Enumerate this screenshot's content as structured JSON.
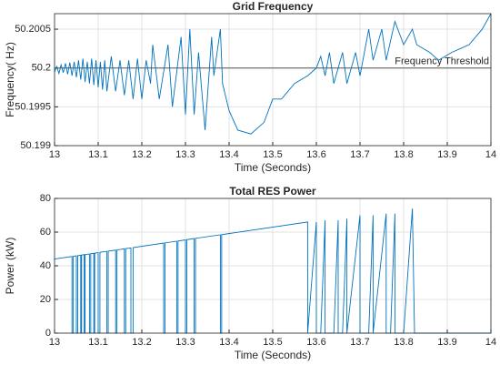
{
  "chart_data": [
    {
      "type": "line",
      "title": "Grid Frequency",
      "xlabel": "Time (Seconds)",
      "ylabel": "Frequency( Hz)",
      "xlim": [
        13,
        14
      ],
      "xticks": [
        13,
        13.1,
        13.2,
        13.3,
        13.4,
        13.5,
        13.6,
        13.7,
        13.8,
        13.9,
        14
      ],
      "ylim": [
        50.199,
        50.2007
      ],
      "yticks": [
        50.199,
        50.1995,
        50.2,
        50.2005
      ],
      "grid": true,
      "threshold": {
        "value": 50.2,
        "label": "Frequency Threshold",
        "color": "#555555"
      },
      "x": [
        13.0,
        13.005,
        13.01,
        13.015,
        13.02,
        13.025,
        13.03,
        13.035,
        13.04,
        13.045,
        13.05,
        13.055,
        13.06,
        13.065,
        13.07,
        13.075,
        13.08,
        13.085,
        13.09,
        13.095,
        13.1,
        13.105,
        13.11,
        13.115,
        13.12,
        13.13,
        13.14,
        13.15,
        13.16,
        13.17,
        13.18,
        13.19,
        13.2,
        13.21,
        13.22,
        13.225,
        13.24,
        13.26,
        13.27,
        13.29,
        13.3,
        13.31,
        13.32,
        13.33,
        13.345,
        13.36,
        13.365,
        13.38,
        13.385,
        13.4,
        13.42,
        13.45,
        13.48,
        13.5,
        13.52,
        13.55,
        13.58,
        13.6,
        13.61,
        13.62,
        13.63,
        13.64,
        13.66,
        13.67,
        13.69,
        13.7,
        13.72,
        13.73,
        13.75,
        13.76,
        13.78,
        13.8,
        13.82,
        13.83,
        13.86,
        13.88,
        13.91,
        13.95,
        13.98,
        14.0
      ],
      "series": [
        {
          "color": "#0072bd",
          "values": [
            50.19995,
            50.20002,
            50.19993,
            50.20004,
            50.19994,
            50.20006,
            50.19992,
            50.20007,
            50.1999,
            50.20008,
            50.19988,
            50.2001,
            50.19985,
            50.20012,
            50.19982,
            50.20008,
            50.1998,
            50.20012,
            50.19978,
            50.2001,
            50.19975,
            50.20008,
            50.19972,
            50.2001,
            50.1997,
            50.20015,
            50.1997,
            50.2001,
            50.19965,
            50.2001,
            50.1996,
            50.20012,
            50.1996,
            50.2001,
            50.1998,
            50.2003,
            50.1996,
            50.2003,
            50.1995,
            50.2004,
            50.1994,
            50.2005,
            50.1994,
            50.2002,
            50.1992,
            50.2004,
            50.1999,
            50.2005,
            50.1998,
            50.19945,
            50.1992,
            50.19915,
            50.1993,
            50.1996,
            50.1996,
            50.1998,
            50.1999,
            50.2,
            50.20015,
            50.1999,
            50.2002,
            50.1998,
            50.2002,
            50.1998,
            50.2002,
            50.1999,
            50.2005,
            50.2001,
            50.2005,
            50.2001,
            50.2006,
            50.2003,
            50.2005,
            50.2003,
            50.2002,
            50.2001,
            50.2002,
            50.2003,
            50.2005,
            50.2007
          ]
        }
      ]
    },
    {
      "type": "line",
      "title": "Total RES Power",
      "xlabel": "Time (Seconds)",
      "ylabel": "Power (kW)",
      "xlim": [
        13,
        14
      ],
      "xticks": [
        13,
        13.1,
        13.2,
        13.3,
        13.4,
        13.5,
        13.6,
        13.7,
        13.8,
        13.9,
        14
      ],
      "ylim": [
        0,
        80
      ],
      "yticks": [
        0,
        20,
        40,
        60,
        80
      ],
      "grid": true,
      "x": [
        13.0,
        13.04,
        13.04,
        13.043,
        13.043,
        13.05,
        13.05,
        13.053,
        13.053,
        13.06,
        13.06,
        13.062,
        13.062,
        13.068,
        13.068,
        13.07,
        13.07,
        13.08,
        13.08,
        13.083,
        13.083,
        13.09,
        13.09,
        13.092,
        13.092,
        13.1,
        13.1,
        13.104,
        13.104,
        13.12,
        13.12,
        13.123,
        13.123,
        13.14,
        13.14,
        13.143,
        13.143,
        13.16,
        13.16,
        13.163,
        13.163,
        13.175,
        13.175,
        13.18,
        13.18,
        13.25,
        13.25,
        13.253,
        13.253,
        13.28,
        13.28,
        13.283,
        13.283,
        13.3,
        13.3,
        13.303,
        13.303,
        13.32,
        13.32,
        13.323,
        13.323,
        13.38,
        13.38,
        13.383,
        13.383,
        13.58,
        13.58,
        13.6,
        13.6,
        13.61,
        13.62,
        13.62,
        13.64,
        13.65,
        13.65,
        13.66,
        13.67,
        13.67,
        13.7,
        13.7,
        13.72,
        13.73,
        13.73,
        13.76,
        13.76,
        13.77,
        13.78,
        13.78,
        13.8,
        13.82,
        13.825,
        14.0
      ],
      "series": [
        {
          "color": "#0072bd",
          "values": [
            44,
            45.5,
            0,
            0,
            45.6,
            45.9,
            0,
            0,
            46,
            46.3,
            0,
            0,
            46.4,
            46.6,
            0,
            0,
            46.7,
            47,
            0,
            0,
            47.2,
            47.4,
            0,
            0,
            47.5,
            47.8,
            0,
            0,
            48,
            48.6,
            0,
            0,
            48.7,
            49.3,
            0,
            0,
            49.4,
            50.1,
            0,
            0,
            50.2,
            50.6,
            0,
            0,
            50.8,
            53.5,
            0,
            0,
            53.6,
            54.6,
            0,
            0,
            54.7,
            55.4,
            0,
            0,
            55.5,
            56.2,
            0,
            0,
            56.3,
            58.4,
            0,
            0,
            58.5,
            66,
            0,
            66,
            0,
            0,
            67,
            0,
            0,
            67,
            0,
            0,
            68,
            0,
            70,
            0,
            0,
            70,
            0,
            71,
            0,
            0,
            71,
            0,
            0,
            74,
            0,
            0
          ]
        }
      ]
    }
  ]
}
